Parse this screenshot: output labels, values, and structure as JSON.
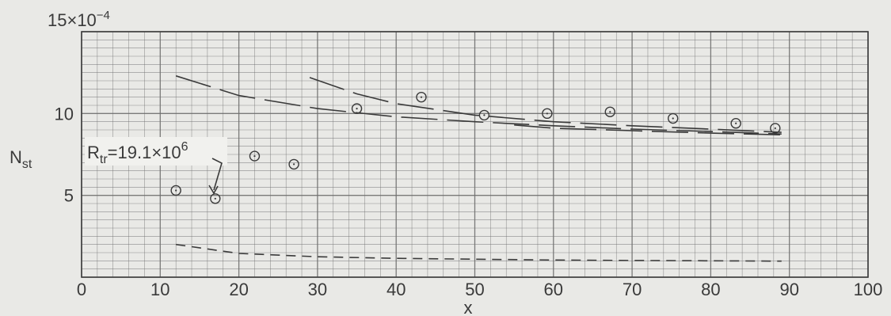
{
  "chart_data": {
    "type": "scatter",
    "title": "",
    "xlabel": "x",
    "ylabel": "N",
    "ylabel_sub": "st",
    "xlim": [
      0,
      100
    ],
    "ylim": [
      0,
      15
    ],
    "x_ticks": [
      "0",
      "10",
      "20",
      "30",
      "40",
      "50",
      "60",
      "70",
      "80",
      "90",
      "100"
    ],
    "y_ticks": [
      {
        "value": 5,
        "label": "5"
      },
      {
        "value": 10,
        "label": "10"
      }
    ],
    "y_top_label": {
      "base": "15×10",
      "exp": "−4"
    },
    "grid": true,
    "colors": {
      "grid": "#6e6e6e",
      "ink": "#3a3a3a",
      "background": "#e9e9e6"
    },
    "points": [
      {
        "x": 12.0,
        "y": 5.3
      },
      {
        "x": 17.0,
        "y": 4.8
      },
      {
        "x": 22.0,
        "y": 7.4
      },
      {
        "x": 27.0,
        "y": 6.9
      },
      {
        "x": 35.0,
        "y": 10.3
      },
      {
        "x": 43.2,
        "y": 11.0
      },
      {
        "x": 51.2,
        "y": 9.9
      },
      {
        "x": 59.2,
        "y": 10.0
      },
      {
        "x": 67.2,
        "y": 10.1
      },
      {
        "x": 75.2,
        "y": 9.7
      },
      {
        "x": 83.2,
        "y": 9.4
      },
      {
        "x": 88.2,
        "y": 9.1
      }
    ],
    "curves": [
      {
        "style": "long-dash",
        "x": [
          12,
          20,
          30,
          40,
          50,
          60,
          70,
          80,
          89
        ],
        "y": [
          12.3,
          11.1,
          10.3,
          9.8,
          9.5,
          9.25,
          9.05,
          8.9,
          8.75
        ]
      },
      {
        "style": "long-dash",
        "x": [
          29,
          35,
          40,
          50,
          60,
          70,
          80,
          89
        ],
        "y": [
          12.2,
          11.2,
          10.6,
          9.9,
          9.5,
          9.25,
          9.05,
          8.85
        ]
      },
      {
        "style": "long-dash",
        "x": [
          55,
          60,
          70,
          80,
          89
        ],
        "y": [
          9.3,
          9.1,
          8.95,
          8.8,
          8.7
        ]
      },
      {
        "style": "short-dash",
        "x": [
          12,
          20,
          30,
          40,
          50,
          60,
          70,
          80,
          89
        ],
        "y": [
          2.0,
          1.45,
          1.25,
          1.15,
          1.1,
          1.05,
          1.02,
          1.0,
          0.98
        ]
      }
    ],
    "annotations": [
      {
        "text": "R",
        "sub": "tr",
        "rest": "=19.1×10",
        "sup": "6",
        "x": 17.0,
        "y": 4.8
      }
    ]
  }
}
